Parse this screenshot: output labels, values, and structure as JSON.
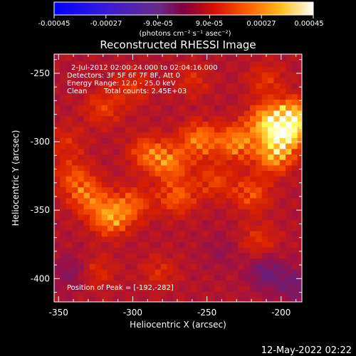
{
  "colorbar": {
    "ticks": [
      "-0.00045",
      "-0.00027",
      "-9.0e-05",
      "9.0e-05",
      "0.00027",
      "0.00045"
    ],
    "tick_values": [
      -0.00045,
      -0.00027,
      -9e-05,
      9e-05,
      0.00027,
      0.00045
    ],
    "range": [
      -0.00045,
      0.00045
    ],
    "unit_label": "(photons cm⁻² s⁻¹ asec⁻²)"
  },
  "annotations": {
    "time_range": "2-Jul-2012 02:00:24.000 to 02:04:16.000",
    "detectors": "Detectors: 3F 5F 6F 7F 8F, Att 0",
    "energy": "Energy Range: 12.0 - 25.0 keV",
    "method": "Clean",
    "total_counts": "Total counts: 2.45E+03",
    "peak": "Position of Peak = [-192,-282]"
  },
  "footer": {
    "timestamp": "12-May-2022 02:22"
  },
  "chart_data": {
    "type": "heatmap",
    "title": "Reconstructed RHESSI Image",
    "xlabel": "Heliocentric X (arcsec)",
    "ylabel": "Heliocentric Y (arcsec)",
    "xlim": [
      -353,
      -186
    ],
    "ylim": [
      -417,
      -236
    ],
    "x_ticks": [
      -350,
      -300,
      -250,
      -200
    ],
    "x_tick_labels": [
      "-350",
      "-300",
      "-250",
      "-200"
    ],
    "y_ticks": [
      -250,
      -300,
      -350,
      -400
    ],
    "y_tick_labels": [
      "-250",
      "-300",
      "-350",
      "-400"
    ],
    "colormap": [
      "#1a00ff",
      "#5a10c8",
      "#7a208a",
      "#6b1e7a",
      "#a01040",
      "#d82000",
      "#ff6000",
      "#ffb020",
      "#ffff60",
      "#ffffff"
    ],
    "peak_position": [
      -192,
      -282
    ],
    "sources": [
      {
        "x": -192,
        "y": -282,
        "value": 0.00042
      },
      {
        "x": -198,
        "y": -295,
        "value": 0.00038
      },
      {
        "x": -210,
        "y": -285,
        "value": 0.00032
      },
      {
        "x": -205,
        "y": -310,
        "value": 0.0003
      },
      {
        "x": -230,
        "y": -300,
        "value": 0.00028
      },
      {
        "x": -255,
        "y": -298,
        "value": 0.00026
      },
      {
        "x": -275,
        "y": -315,
        "value": 0.00024
      },
      {
        "x": -290,
        "y": -308,
        "value": 0.0002
      },
      {
        "x": -330,
        "y": -340,
        "value": 0.00022
      },
      {
        "x": -315,
        "y": -355,
        "value": 0.0003
      },
      {
        "x": -300,
        "y": -345,
        "value": 0.00018
      },
      {
        "x": -340,
        "y": -325,
        "value": 0.00016
      },
      {
        "x": -270,
        "y": -340,
        "value": 0.0002
      },
      {
        "x": -220,
        "y": -338,
        "value": 0.00018
      },
      {
        "x": -245,
        "y": -328,
        "value": 0.00015
      },
      {
        "x": -320,
        "y": -275,
        "value": 0.00014
      },
      {
        "x": -300,
        "y": -260,
        "value": 0.00012
      },
      {
        "x": -260,
        "y": -255,
        "value": 0.0001
      },
      {
        "x": -325,
        "y": -395,
        "value": 0.00012
      },
      {
        "x": -282,
        "y": -395,
        "value": 0.0001
      },
      {
        "x": -215,
        "y": -372,
        "value": 0.00012
      },
      {
        "x": -345,
        "y": -300,
        "value": 0.0001
      },
      {
        "x": -210,
        "y": -255,
        "value": 0.00012
      }
    ],
    "negative_sources": [
      {
        "x": -210,
        "y": -395,
        "value": -0.00016
      },
      {
        "x": -190,
        "y": -405,
        "value": -0.00014
      },
      {
        "x": -340,
        "y": -395,
        "value": -0.00012
      },
      {
        "x": -240,
        "y": -380,
        "value": -6e-05
      }
    ]
  }
}
